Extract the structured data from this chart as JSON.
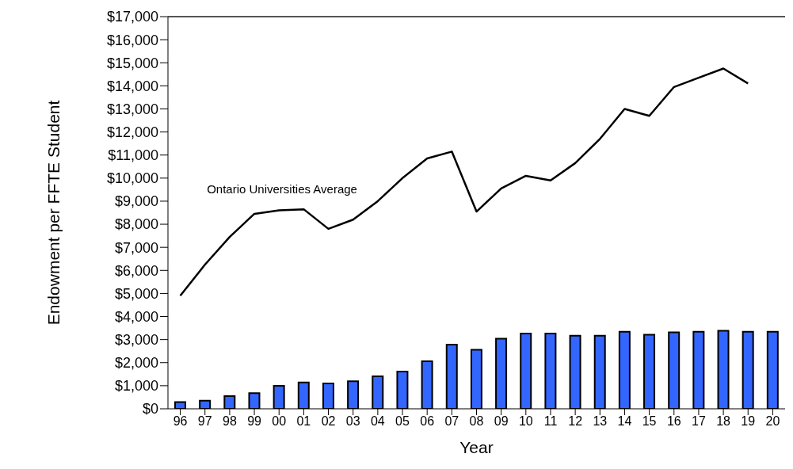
{
  "chart_data": {
    "type": "bar",
    "xlabel": "Year",
    "ylabel": "Endowment per FFTE Student",
    "categories": [
      "96",
      "97",
      "98",
      "99",
      "00",
      "01",
      "02",
      "03",
      "04",
      "05",
      "06",
      "07",
      "08",
      "09",
      "10",
      "11",
      "12",
      "13",
      "14",
      "15",
      "16",
      "17",
      "18",
      "19",
      "20"
    ],
    "series": [
      {
        "color": "#3366ff",
        "values": [
          290,
          350,
          550,
          680,
          1000,
          1140,
          1100,
          1190,
          1410,
          1610,
          2060,
          2780,
          2560,
          3040,
          3260,
          3260,
          3170,
          3170,
          3340,
          3210,
          3310,
          3340,
          3380,
          3340,
          3340
        ]
      },
      {
        "type": "line",
        "name": "Ontario Universities Average",
        "color": "#000000",
        "values": [
          4900,
          6250,
          7450,
          8450,
          8600,
          8650,
          7800,
          8200,
          9000,
          10000,
          10850,
          11150,
          8550,
          9550,
          10100,
          9900,
          10650,
          11700,
          13000,
          12700,
          13950,
          14350,
          14750,
          14100,
          null
        ]
      }
    ],
    "ylim": [
      0,
      17000
    ],
    "yticks": [
      {
        "value": 0,
        "label": "$0"
      },
      {
        "value": 1000,
        "label": "$1,000"
      },
      {
        "value": 2000,
        "label": "$2,000"
      },
      {
        "value": 3000,
        "label": "$3,000"
      },
      {
        "value": 4000,
        "label": "$4,000"
      },
      {
        "value": 5000,
        "label": "$5,000"
      },
      {
        "value": 6000,
        "label": "$6,000"
      },
      {
        "value": 7000,
        "label": "$7,000"
      },
      {
        "value": 8000,
        "label": "$8,000"
      },
      {
        "value": 9000,
        "label": "$9,000"
      },
      {
        "value": 10000,
        "label": "$10,000"
      },
      {
        "value": 11000,
        "label": "$11,000"
      },
      {
        "value": 12000,
        "label": "$12,000"
      },
      {
        "value": 13000,
        "label": "$13,000"
      },
      {
        "value": 14000,
        "label": "$14,000"
      },
      {
        "value": 15000,
        "label": "$15,000"
      },
      {
        "value": 16000,
        "label": "$16,000"
      },
      {
        "value": 17000,
        "label": "$17,000"
      }
    ],
    "grid": false,
    "legend": false,
    "marker": "none"
  }
}
